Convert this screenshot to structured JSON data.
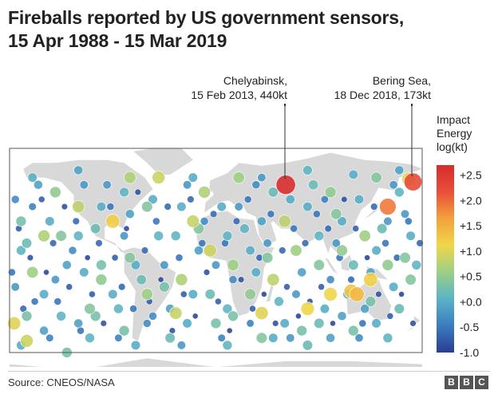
{
  "title_line1": "Fireballs reported by US government sensors,",
  "title_line2": "15 Apr 1988 - 15 Mar 2019",
  "source": "Source: CNEOS/NASA",
  "logo": [
    "B",
    "B",
    "C"
  ],
  "colors": {
    "scale": [
      "#2b3d91",
      "#3b7bbf",
      "#5bb3c8",
      "#9ccf86",
      "#f0d64a",
      "#f3a23b",
      "#e8503a",
      "#d62b2b"
    ],
    "land": "#d8d8d8",
    "frame": "#555555"
  },
  "chart_data": {
    "type": "scatter",
    "title": "Fireballs reported by US government sensors, 15 Apr 1988 - 15 Mar 2019",
    "legend": {
      "title": [
        "Impact",
        "Energy",
        "log(kt)"
      ],
      "ticks": [
        "+2.5",
        "+2.0",
        "+1.5",
        "+1.0",
        "+0.5",
        "+0.0",
        "-0.5",
        "-1.0"
      ],
      "range": [
        -1.0,
        2.7
      ],
      "placement": "right"
    },
    "annotations": [
      {
        "lines": [
          "Chelyabinsk,",
          "15 Feb 2013, 440kt"
        ],
        "lon": 61,
        "lat": 55,
        "value": 2.64
      },
      {
        "lines": [
          "Bering Sea,",
          "18 Dec 2018, 173kt"
        ],
        "lon": 172,
        "lat": 57,
        "value": 2.24
      }
    ],
    "points": [
      [
        61,
        55,
        2.64
      ],
      [
        172,
        57,
        2.24
      ],
      [
        168,
        59,
        1.05
      ],
      [
        150,
        40,
        1.9
      ],
      [
        123,
        -20,
        1.4
      ],
      [
        118,
        -18,
        1.3
      ],
      [
        135,
        -10,
        1.2
      ],
      [
        100,
        -20,
        1.1
      ],
      [
        -176,
        -40,
        1.0
      ],
      [
        -165,
        -52,
        0.9
      ],
      [
        80,
        -30,
        1.1
      ],
      [
        40,
        -33,
        1.0
      ],
      [
        -35,
        -33,
        0.85
      ],
      [
        -50,
        60,
        0.9
      ],
      [
        -75,
        60,
        0.7
      ],
      [
        -20,
        30,
        0.85
      ],
      [
        -10,
        50,
        0.7
      ],
      [
        -90,
        30,
        1.2
      ],
      [
        -120,
        40,
        0.8
      ],
      [
        -150,
        20,
        0.7
      ],
      [
        -160,
        -5,
        0.6
      ],
      [
        -100,
        -10,
        0.5
      ],
      [
        -60,
        -20,
        0.6
      ],
      [
        -30,
        -10,
        0.7
      ],
      [
        -5,
        10,
        0.9
      ],
      [
        15,
        0,
        0.6
      ],
      [
        30,
        -20,
        0.5
      ],
      [
        50,
        -10,
        0.8
      ],
      [
        70,
        10,
        0.6
      ],
      [
        90,
        0,
        0.4
      ],
      [
        110,
        10,
        0.5
      ],
      [
        130,
        20,
        0.6
      ],
      [
        150,
        0,
        0.5
      ],
      [
        170,
        -10,
        0.4
      ],
      [
        -170,
        30,
        0.3
      ],
      [
        -140,
        50,
        0.5
      ],
      [
        -110,
        -30,
        0.4
      ],
      [
        -80,
        -45,
        0.3
      ],
      [
        -40,
        -50,
        0.2
      ],
      [
        0,
        -40,
        0.3
      ],
      [
        40,
        -50,
        0.4
      ],
      [
        80,
        -55,
        0.2
      ],
      [
        120,
        -45,
        0.3
      ],
      [
        160,
        -30,
        0.2
      ],
      [
        -130,
        -60,
        0.3
      ],
      [
        20,
        60,
        0.6
      ],
      [
        60,
        30,
        0.8
      ],
      [
        100,
        50,
        0.5
      ],
      [
        140,
        60,
        0.4
      ],
      [
        -60,
        40,
        0.4
      ],
      [
        -170,
        10,
        0.1
      ],
      [
        -150,
        -20,
        0.0
      ],
      [
        -130,
        0,
        -0.1
      ],
      [
        -120,
        20,
        0.1
      ],
      [
        -100,
        40,
        0.0
      ],
      [
        -80,
        20,
        -0.2
      ],
      [
        -70,
        0,
        0.0
      ],
      [
        -50,
        20,
        0.1
      ],
      [
        -40,
        -30,
        -0.1
      ],
      [
        -20,
        -20,
        0.0
      ],
      [
        -10,
        30,
        -0.3
      ],
      [
        10,
        20,
        0.1
      ],
      [
        20,
        40,
        -0.2
      ],
      [
        30,
        10,
        0.0
      ],
      [
        40,
        30,
        -0.1
      ],
      [
        50,
        50,
        0.2
      ],
      [
        70,
        -20,
        -0.2
      ],
      [
        80,
        40,
        0.0
      ],
      [
        90,
        20,
        0.1
      ],
      [
        100,
        -10,
        -0.3
      ],
      [
        110,
        30,
        0.0
      ],
      [
        120,
        0,
        0.2
      ],
      [
        130,
        -30,
        -0.1
      ],
      [
        140,
        10,
        0.0
      ],
      [
        150,
        30,
        -0.2
      ],
      [
        160,
        50,
        0.1
      ],
      [
        170,
        20,
        0.0
      ],
      [
        -160,
        40,
        -0.4
      ],
      [
        -140,
        -10,
        -0.2
      ],
      [
        -120,
        -40,
        -0.1
      ],
      [
        -100,
        0,
        0.3
      ],
      [
        -90,
        -20,
        0.0
      ],
      [
        -60,
        -40,
        -0.3
      ],
      [
        -30,
        40,
        0.0
      ],
      [
        0,
        0,
        -0.2
      ],
      [
        10,
        -30,
        0.1
      ],
      [
        30,
        -40,
        -0.4
      ],
      [
        60,
        -40,
        0.0
      ],
      [
        90,
        -40,
        0.2
      ],
      [
        110,
        -35,
        -0.1
      ],
      [
        140,
        -40,
        0.0
      ],
      [
        -175,
        -15,
        -0.2
      ],
      [
        -165,
        15,
        0.2
      ],
      [
        -155,
        55,
        -0.1
      ],
      [
        -145,
        30,
        0.0
      ],
      [
        -135,
        -35,
        0.1
      ],
      [
        -125,
        10,
        -0.3
      ],
      [
        -115,
        -5,
        0.0
      ],
      [
        -105,
        25,
        0.2
      ],
      [
        -95,
        55,
        -0.2
      ],
      [
        -85,
        -30,
        0.1
      ],
      [
        -75,
        35,
        -0.1
      ],
      [
        -65,
        -10,
        0.2
      ],
      [
        -55,
        45,
        0.0
      ],
      [
        -45,
        0,
        -0.2
      ],
      [
        -35,
        20,
        0.1
      ],
      [
        -25,
        -40,
        0.0
      ],
      [
        -15,
        10,
        -0.1
      ],
      [
        -5,
        -20,
        0.2
      ],
      [
        5,
        40,
        0.0
      ],
      [
        15,
        -10,
        -0.3
      ],
      [
        25,
        25,
        0.1
      ],
      [
        35,
        -5,
        0.0
      ],
      [
        45,
        15,
        -0.2
      ],
      [
        55,
        -25,
        0.1
      ],
      [
        65,
        45,
        0.0
      ],
      [
        75,
        -5,
        -0.1
      ],
      [
        85,
        55,
        0.2
      ],
      [
        95,
        -30,
        0.0
      ],
      [
        105,
        15,
        -0.2
      ],
      [
        115,
        -20,
        0.1
      ],
      [
        125,
        45,
        0.0
      ],
      [
        135,
        -5,
        -0.1
      ],
      [
        145,
        25,
        0.2
      ],
      [
        155,
        -15,
        0.0
      ],
      [
        165,
        35,
        -0.2
      ],
      [
        175,
        0,
        0.1
      ],
      [
        -170,
        -55,
        0.0
      ],
      [
        -150,
        -45,
        -0.1
      ],
      [
        -110,
        -50,
        0.1
      ],
      [
        -70,
        -55,
        0.0
      ],
      [
        -30,
        -55,
        -0.2
      ],
      [
        10,
        -55,
        0.1
      ],
      [
        50,
        -50,
        0.0
      ],
      [
        100,
        -50,
        -0.1
      ],
      [
        150,
        -50,
        0.1
      ],
      [
        -160,
        60,
        0.0
      ],
      [
        -120,
        65,
        -0.1
      ],
      [
        -80,
        50,
        0.1
      ],
      [
        -20,
        60,
        0.0
      ],
      [
        40,
        60,
        -0.2
      ],
      [
        80,
        65,
        0.1
      ],
      [
        120,
        62,
        0.0
      ],
      [
        160,
        65,
        -0.1
      ],
      [
        -178,
        -5,
        -0.5
      ],
      [
        -172,
        25,
        -0.7
      ],
      [
        -168,
        -30,
        -0.6
      ],
      [
        -162,
        5,
        -0.8
      ],
      [
        -158,
        -25,
        -0.5
      ],
      [
        -152,
        45,
        -0.7
      ],
      [
        -148,
        -5,
        -0.9
      ],
      [
        -142,
        15,
        -0.6
      ],
      [
        -138,
        -25,
        -0.5
      ],
      [
        -132,
        40,
        -0.8
      ],
      [
        -128,
        -15,
        -0.7
      ],
      [
        -122,
        30,
        -0.6
      ],
      [
        -118,
        -45,
        -0.5
      ],
      [
        -112,
        5,
        -0.9
      ],
      [
        -108,
        -20,
        -0.7
      ],
      [
        -102,
        15,
        -0.6
      ],
      [
        -98,
        -40,
        -0.8
      ],
      [
        -92,
        40,
        -0.5
      ],
      [
        -88,
        5,
        -0.7
      ],
      [
        -82,
        -15,
        -0.6
      ],
      [
        -78,
        25,
        -0.9
      ],
      [
        -72,
        -30,
        -0.5
      ],
      [
        -68,
        50,
        -0.8
      ],
      [
        -62,
        10,
        -0.6
      ],
      [
        -58,
        -25,
        -0.7
      ],
      [
        -52,
        30,
        -0.5
      ],
      [
        -48,
        -10,
        -0.9
      ],
      [
        -42,
        40,
        -0.6
      ],
      [
        -38,
        -45,
        -0.8
      ],
      [
        -32,
        5,
        -0.5
      ],
      [
        -28,
        -20,
        -0.7
      ],
      [
        -22,
        45,
        -0.6
      ],
      [
        -18,
        -35,
        -0.9
      ],
      [
        -12,
        15,
        -0.5
      ],
      [
        -8,
        -5,
        -0.8
      ],
      [
        -2,
        35,
        -0.6
      ],
      [
        2,
        -25,
        -0.7
      ],
      [
        8,
        15,
        -0.5
      ],
      [
        12,
        -45,
        -0.9
      ],
      [
        18,
        30,
        -0.6
      ],
      [
        22,
        -10,
        -0.8
      ],
      [
        28,
        45,
        -0.5
      ],
      [
        32,
        -30,
        -0.7
      ],
      [
        38,
        5,
        -0.6
      ],
      [
        42,
        -20,
        -0.9
      ],
      [
        48,
        35,
        -0.5
      ],
      [
        52,
        -40,
        -0.8
      ],
      [
        58,
        10,
        -0.6
      ],
      [
        62,
        -15,
        -0.7
      ],
      [
        68,
        25,
        -0.5
      ],
      [
        72,
        -35,
        -0.9
      ],
      [
        78,
        15,
        -0.6
      ],
      [
        82,
        -25,
        -0.8
      ],
      [
        88,
        35,
        -0.5
      ],
      [
        92,
        -15,
        -0.7
      ],
      [
        98,
        25,
        -0.6
      ],
      [
        102,
        -40,
        -0.9
      ],
      [
        108,
        5,
        -0.5
      ],
      [
        112,
        45,
        -0.8
      ],
      [
        118,
        -10,
        -0.6
      ],
      [
        122,
        25,
        -0.7
      ],
      [
        128,
        -40,
        -0.5
      ],
      [
        132,
        5,
        -0.9
      ],
      [
        138,
        40,
        -0.6
      ],
      [
        142,
        -20,
        -0.8
      ],
      [
        148,
        15,
        -0.5
      ],
      [
        152,
        -35,
        -0.7
      ],
      [
        158,
        5,
        -0.6
      ],
      [
        162,
        -20,
        -0.9
      ],
      [
        168,
        30,
        -0.5
      ],
      [
        172,
        -40,
        -0.8
      ],
      [
        178,
        15,
        -0.6
      ],
      [
        -175,
        45,
        -0.3
      ],
      [
        -145,
        -50,
        -0.4
      ],
      [
        -115,
        55,
        -0.2
      ],
      [
        -85,
        -50,
        -0.4
      ],
      [
        -55,
        -35,
        -0.3
      ],
      [
        -25,
        55,
        -0.2
      ],
      [
        5,
        -50,
        -0.4
      ],
      [
        35,
        55,
        -0.3
      ],
      [
        65,
        -50,
        -0.2
      ],
      [
        95,
        45,
        -0.4
      ],
      [
        125,
        -50,
        -0.3
      ],
      [
        155,
        55,
        -0.2
      ],
      [
        -165,
        -35,
        0.3
      ],
      [
        -135,
        20,
        0.4
      ],
      [
        -105,
        -35,
        0.3
      ],
      [
        -75,
        5,
        0.4
      ],
      [
        -45,
        -15,
        0.3
      ],
      [
        -15,
        25,
        0.4
      ],
      [
        15,
        -35,
        0.3
      ],
      [
        45,
        5,
        0.4
      ],
      [
        75,
        -45,
        0.3
      ],
      [
        105,
        35,
        0.4
      ],
      [
        135,
        -25,
        0.3
      ],
      [
        165,
        5,
        0.4
      ]
    ]
  }
}
